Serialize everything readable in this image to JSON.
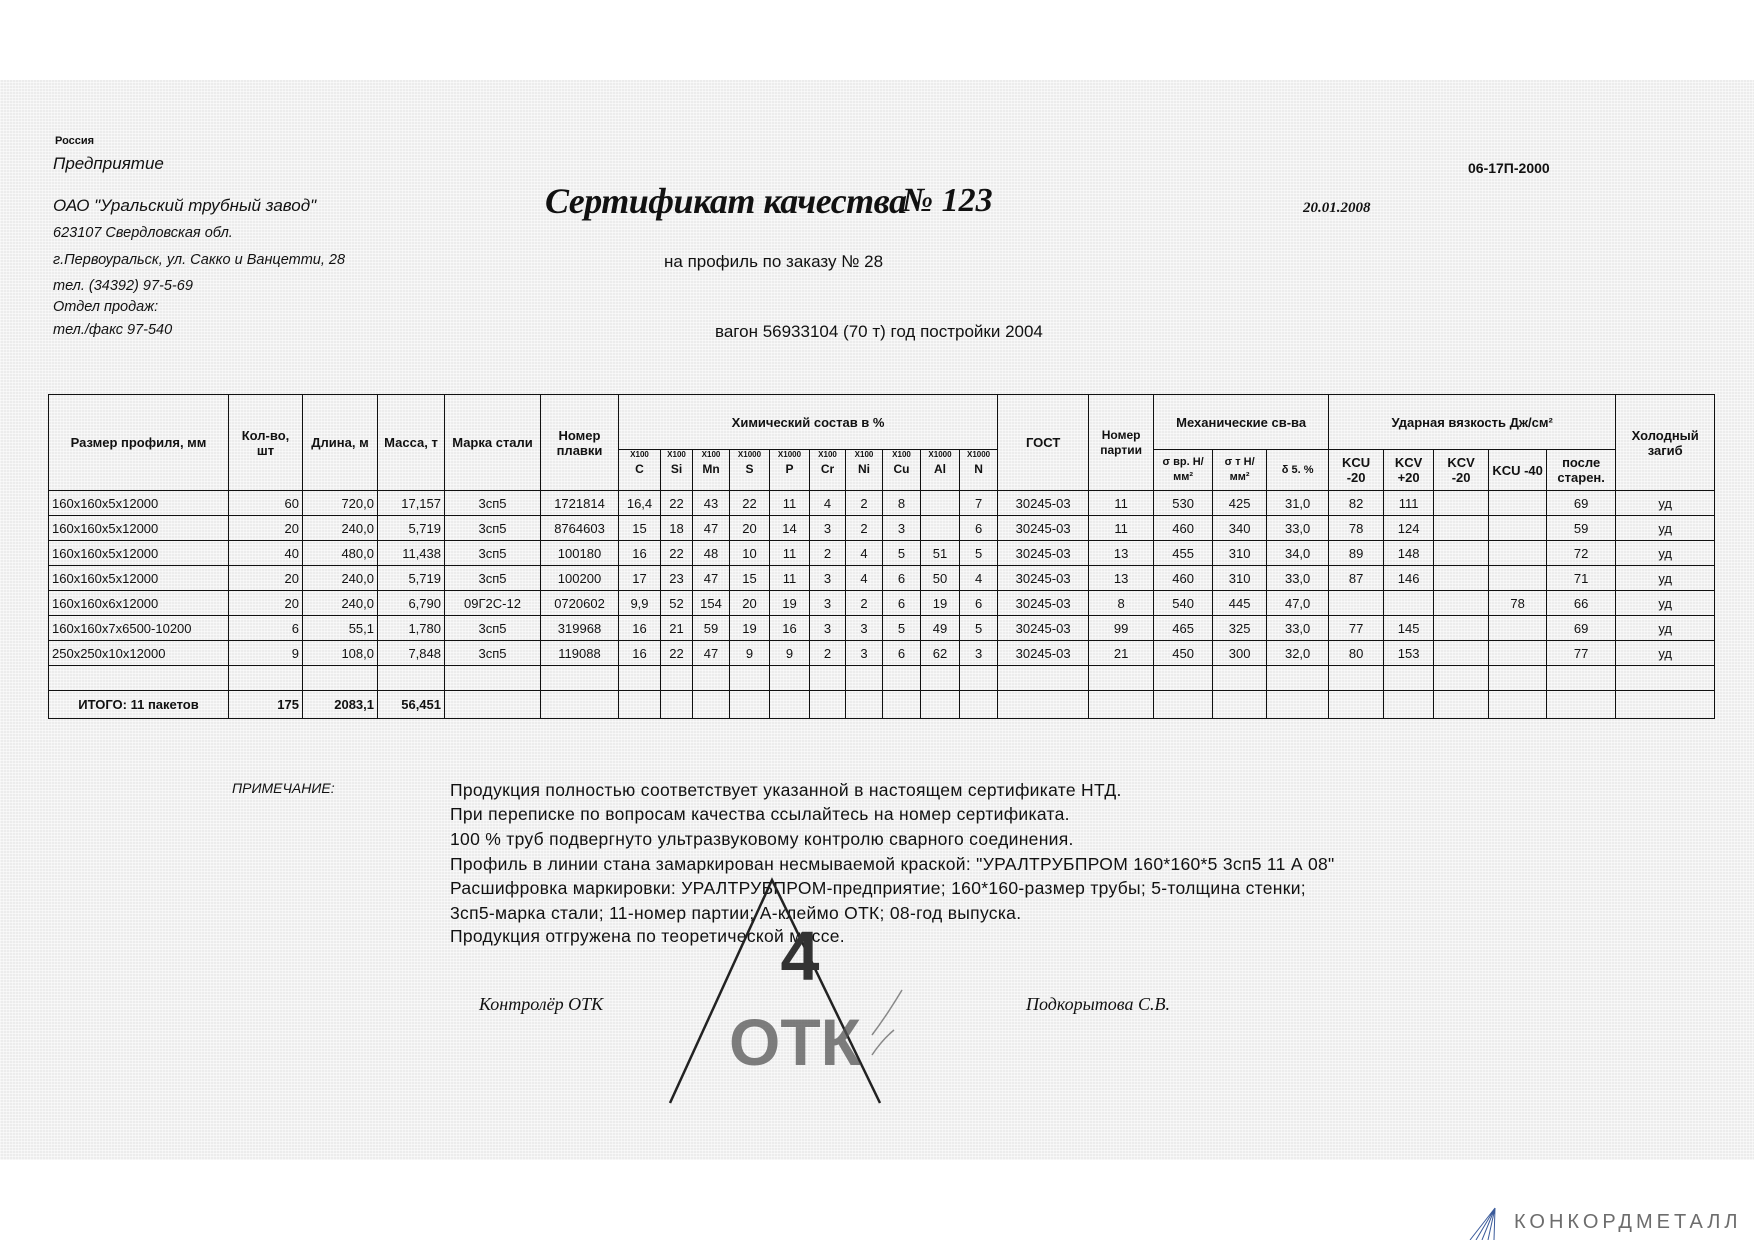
{
  "company": {
    "country": "Россия",
    "enterprise_label": "Предприятие",
    "name": "ОАО \"Уральский трубный завод\"",
    "address1": "623107 Свердловская обл.",
    "address2": "г.Первоуральск, ул. Сакко и Ванцетти, 28",
    "phone": "тел. (34392) 97-5-69",
    "sales_label": "Отдел продаж:",
    "fax": "тел./факс 97-540"
  },
  "header": {
    "title": "Сертификат качества",
    "number": "№ 123",
    "date": "20.01.2008",
    "doc_code": "06-17П-2000",
    "order": "на профиль по заказу № 28",
    "wagon": "вагон 56933104 (70 т) год постройки 2004"
  },
  "table": {
    "headers": {
      "size": "Размер профиля, мм",
      "qty": "Кол-во, шт",
      "length": "Длина, м",
      "mass": "Масса, т",
      "steel": "Марка стали",
      "heat": "Номер плавки",
      "chem": "Химический состав в %",
      "gost": "ГОСТ",
      "batch": "Номер партии",
      "mech": "Механические св-ва",
      "impact": "Ударная вязкость Дж/см²",
      "bend": "Холодный загиб"
    },
    "chem_cols": [
      {
        "mult": "X100",
        "el": "C"
      },
      {
        "mult": "X100",
        "el": "Si"
      },
      {
        "mult": "X100",
        "el": "Mn"
      },
      {
        "mult": "X1000",
        "el": "S"
      },
      {
        "mult": "X1000",
        "el": "P"
      },
      {
        "mult": "X100",
        "el": "Cr"
      },
      {
        "mult": "X100",
        "el": "Ni"
      },
      {
        "mult": "X100",
        "el": "Cu"
      },
      {
        "mult": "X1000",
        "el": "Al"
      },
      {
        "mult": "X1000",
        "el": "N"
      }
    ],
    "mech_cols": [
      "σ вр. Н/мм²",
      "σ т Н/мм²",
      "δ 5. %"
    ],
    "impact_cols": [
      "KCU -20",
      "KCV +20",
      "KCV -20",
      "KCU -40",
      "после старен."
    ],
    "rows": [
      [
        "160x160x5x12000",
        "60",
        "720,0",
        "17,157",
        "3сп5",
        "1721814",
        "16,4",
        "22",
        "43",
        "22",
        "11",
        "4",
        "2",
        "8",
        "",
        "7",
        "30245-03",
        "11",
        "530",
        "425",
        "31,0",
        "82",
        "111",
        "",
        "",
        "69",
        "уд"
      ],
      [
        "160x160x5x12000",
        "20",
        "240,0",
        "5,719",
        "3сп5",
        "8764603",
        "15",
        "18",
        "47",
        "20",
        "14",
        "3",
        "2",
        "3",
        "",
        "6",
        "30245-03",
        "11",
        "460",
        "340",
        "33,0",
        "78",
        "124",
        "",
        "",
        "59",
        "уд"
      ],
      [
        "160x160x5x12000",
        "40",
        "480,0",
        "11,438",
        "3сп5",
        "100180",
        "16",
        "22",
        "48",
        "10",
        "11",
        "2",
        "4",
        "5",
        "51",
        "5",
        "30245-03",
        "13",
        "455",
        "310",
        "34,0",
        "89",
        "148",
        "",
        "",
        "72",
        "уд"
      ],
      [
        "160x160x5x12000",
        "20",
        "240,0",
        "5,719",
        "3сп5",
        "100200",
        "17",
        "23",
        "47",
        "15",
        "11",
        "3",
        "4",
        "6",
        "50",
        "4",
        "30245-03",
        "13",
        "460",
        "310",
        "33,0",
        "87",
        "146",
        "",
        "",
        "71",
        "уд"
      ],
      [
        "160x160x6x12000",
        "20",
        "240,0",
        "6,790",
        "09Г2С-12",
        "0720602",
        "9,9",
        "52",
        "154",
        "20",
        "19",
        "3",
        "2",
        "6",
        "19",
        "6",
        "30245-03",
        "8",
        "540",
        "445",
        "47,0",
        "",
        "",
        "",
        "78",
        "66",
        "уд"
      ],
      [
        "160x160x7x6500-10200",
        "6",
        "55,1",
        "1,780",
        "3сп5",
        "319968",
        "16",
        "21",
        "59",
        "19",
        "16",
        "3",
        "3",
        "5",
        "49",
        "5",
        "30245-03",
        "99",
        "465",
        "325",
        "33,0",
        "77",
        "145",
        "",
        "",
        "69",
        "уд"
      ],
      [
        "250x250x10x12000",
        "9",
        "108,0",
        "7,848",
        "3сп5",
        "119088",
        "16",
        "22",
        "47",
        "9",
        "9",
        "2",
        "3",
        "6",
        "62",
        "3",
        "30245-03",
        "21",
        "450",
        "300",
        "32,0",
        "80",
        "153",
        "",
        "",
        "77",
        "уд"
      ]
    ],
    "total": {
      "label": "ИТОГО: 11 пакетов",
      "qty": "175",
      "length": "2083,1",
      "mass": "56,451"
    }
  },
  "notes": {
    "heading": "ПРИМЕЧАНИЕ:",
    "lines": [
      "Продукция полностью соответствует указанной в настоящем сертификате НТД.",
      "При переписке по вопросам качества ссылайтесь на номер сертификата.",
      "100 % труб подвергнуто ультразвуковому контролю сварного соединения.",
      "Профиль в линии стана замаркирован несмываемой краской: \"УРАЛТРУБПРОМ 160*160*5 3сп5 11 А 08\"",
      "Расшифровка маркировки: УРАЛТРУБПРОМ-предприятие; 160*160-размер трубы; 5-толщина стенки;",
      "3сп5-марка стали; 11-номер партии; А-клеймо ОТК; 08-год выпуска.",
      "Продукция отгружена по теоретической массе."
    ]
  },
  "signatures": {
    "controller": "Контролёр ОТК",
    "name": "Подкорытова С.В."
  },
  "stamp": {
    "number": "4",
    "text": "ОТК"
  },
  "logo": {
    "text": "КОНКОРДМЕТАЛЛ",
    "color": "#6d6d6d",
    "accent": "#3a5a9a"
  }
}
